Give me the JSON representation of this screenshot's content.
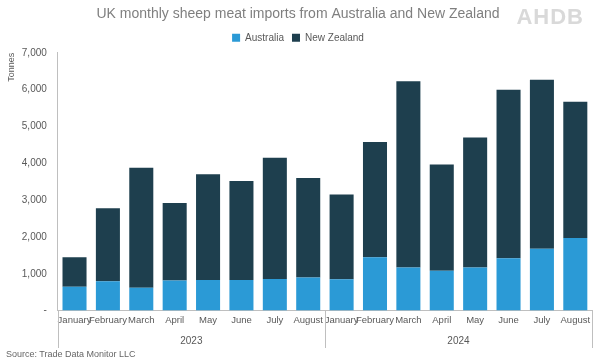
{
  "chart_data": {
    "type": "bar",
    "title": "UK monthly sheep meat imports from Australia and New Zealand",
    "y_label": "Tonnes",
    "source": "Source: Trade Data Monitor LLC",
    "watermark": "AHDB",
    "categories": [
      "January",
      "February",
      "March",
      "April",
      "May",
      "June",
      "July",
      "August",
      "January",
      "February",
      "March",
      "April",
      "May",
      "June",
      "July",
      "August"
    ],
    "category_groups": [
      "2023",
      "2023",
      "2023",
      "2023",
      "2023",
      "2023",
      "2023",
      "2023",
      "2024",
      "2024",
      "2024",
      "2024",
      "2024",
      "2024",
      "2024",
      "2024"
    ],
    "series": [
      {
        "name": "Australia",
        "color": "#2b9ad6",
        "values": [
          650,
          800,
          620,
          820,
          830,
          830,
          860,
          900,
          850,
          1450,
          1170,
          1080,
          1170,
          1420,
          1680,
          1970
        ]
      },
      {
        "name": "New Zealand",
        "color": "#1e3f4e",
        "values": [
          800,
          1980,
          3260,
          2100,
          2870,
          2690,
          3290,
          2700,
          2300,
          3130,
          5060,
          2890,
          3530,
          4580,
          4590,
          3700
        ]
      }
    ],
    "stacked": true,
    "ylim": [
      0,
      7000
    ],
    "yticks": [
      {
        "value": 0,
        "label": "-"
      },
      {
        "value": 1000,
        "label": "1,000"
      },
      {
        "value": 2000,
        "label": "2,000"
      },
      {
        "value": 3000,
        "label": "3,000"
      },
      {
        "value": 4000,
        "label": "4,000"
      },
      {
        "value": 5000,
        "label": "5,000"
      },
      {
        "value": 6000,
        "label": "6,000"
      },
      {
        "value": 7000,
        "label": "7,000"
      }
    ],
    "grid": false,
    "legend": "top"
  }
}
